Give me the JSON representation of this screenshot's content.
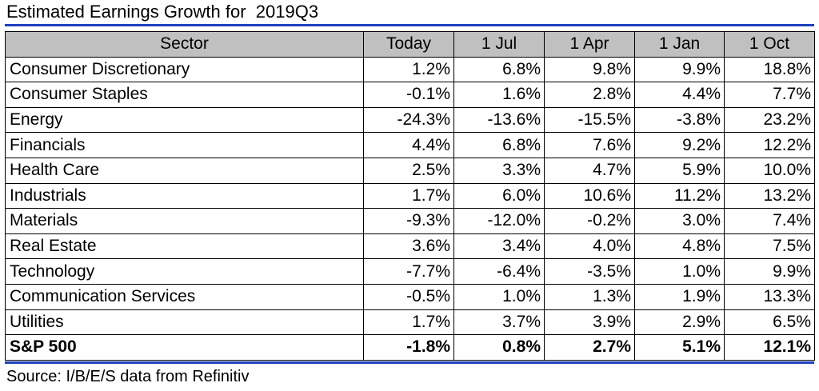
{
  "title": "Estimated Earnings Growth for  2019Q3",
  "source": "Source: I/B/E/S data from Refinitiv",
  "colors": {
    "rule": "#1f3fbf",
    "header_bg": "#c0c0c0"
  },
  "chart_data": {
    "type": "table",
    "title": "Estimated Earnings Growth for  2019Q3",
    "columns": [
      "Sector",
      "Today",
      "1 Jul",
      "1 Apr",
      "1 Jan",
      "1 Oct"
    ],
    "rows": [
      [
        "Consumer Discretionary",
        "1.2%",
        "6.8%",
        "9.8%",
        "9.9%",
        "18.8%"
      ],
      [
        "Consumer Staples",
        "-0.1%",
        "1.6%",
        "2.8%",
        "4.4%",
        "7.7%"
      ],
      [
        "Energy",
        "-24.3%",
        "-13.6%",
        "-15.5%",
        "-3.8%",
        "23.2%"
      ],
      [
        "Financials",
        "4.4%",
        "6.8%",
        "7.6%",
        "9.2%",
        "12.2%"
      ],
      [
        "Health Care",
        "2.5%",
        "3.3%",
        "4.7%",
        "5.9%",
        "10.0%"
      ],
      [
        "Industrials",
        "1.7%",
        "6.0%",
        "10.6%",
        "11.2%",
        "13.2%"
      ],
      [
        "Materials",
        "-9.3%",
        "-12.0%",
        "-0.2%",
        "3.0%",
        "7.4%"
      ],
      [
        "Real Estate",
        "3.6%",
        "3.4%",
        "4.0%",
        "4.8%",
        "7.5%"
      ],
      [
        "Technology",
        "-7.7%",
        "-6.4%",
        "-3.5%",
        "1.0%",
        "9.9%"
      ],
      [
        "Communication Services",
        "-0.5%",
        "1.0%",
        "1.3%",
        "1.9%",
        "13.3%"
      ],
      [
        "Utilities",
        "1.7%",
        "3.7%",
        "3.9%",
        "2.9%",
        "6.5%"
      ]
    ],
    "total_row": [
      "S&P 500",
      "-1.8%",
      "0.8%",
      "2.7%",
      "5.1%",
      "12.1%"
    ]
  }
}
